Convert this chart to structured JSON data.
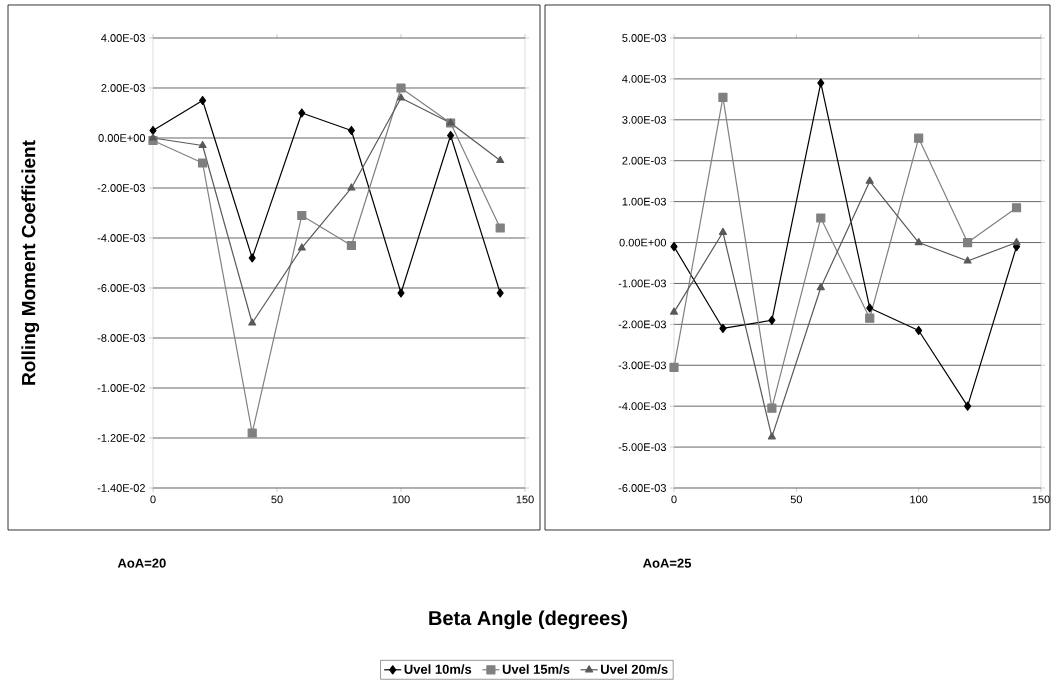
{
  "chart_data": [
    {
      "type": "line",
      "ylabel": "Rolling Moment Coefficient",
      "xlabel": "Beta Angle (degrees)",
      "annotations": [
        "AoA=20"
      ],
      "x": [
        0,
        20,
        40,
        60,
        80,
        100,
        120,
        140
      ],
      "series": [
        {
          "name": "Uvel 10m/s",
          "color": "#000000",
          "marker": "diamond",
          "values": [
            0.0003,
            0.0015,
            -0.0048,
            0.001,
            0.0003,
            -0.0062,
            0.0001,
            -0.0062
          ]
        },
        {
          "name": "Uvel 15m/s",
          "color": "#808080",
          "marker": "square",
          "values": [
            -0.0001,
            -0.001,
            -0.0118,
            -0.0031,
            -0.0043,
            0.002,
            0.0006,
            -0.0036
          ]
        },
        {
          "name": "Uvel 20m/s",
          "color": "#595959",
          "marker": "triangle",
          "values": [
            0.0,
            -0.0003,
            -0.0074,
            -0.0044,
            -0.002,
            0.0016,
            0.0006,
            -0.0009
          ]
        }
      ],
      "xlim": [
        0,
        150
      ],
      "xticks": [
        0,
        50,
        100,
        150
      ],
      "ylim": [
        -0.014,
        0.004
      ],
      "yticks": [
        {
          "value": -0.014,
          "label": "-1.40E-02"
        },
        {
          "value": -0.012,
          "label": "-1.20E-02"
        },
        {
          "value": -0.01,
          "label": "-1.00E-02"
        },
        {
          "value": -0.008,
          "label": "-8.00E-03"
        },
        {
          "value": -0.006,
          "label": "-6.00E-03"
        },
        {
          "value": -0.004,
          "label": "-4.00E-03"
        },
        {
          "value": -0.002,
          "label": "-2.00E-03"
        },
        {
          "value": 0,
          "label": "0.00E+00"
        },
        {
          "value": 0.002,
          "label": "2.00E-03"
        },
        {
          "value": 0.004,
          "label": "4.00E-03"
        }
      ],
      "grid": "y",
      "legend": "bottom",
      "line_style": "solid"
    },
    {
      "type": "line",
      "annotations": [
        "AoA=25"
      ],
      "x": [
        0,
        20,
        40,
        60,
        80,
        100,
        120,
        140
      ],
      "series": [
        {
          "color": "#000000",
          "marker": "diamond",
          "values": [
            -0.0001,
            -0.0021,
            -0.0019,
            0.0039,
            -0.0016,
            -0.00215,
            -0.004,
            -0.0001
          ]
        },
        {
          "color": "#808080",
          "marker": "square",
          "values": [
            -0.00305,
            0.00355,
            -0.00405,
            0.0006,
            -0.00185,
            0.00255,
            0.0,
            0.00085
          ]
        },
        {
          "color": "#595959",
          "marker": "triangle",
          "values": [
            -0.0017,
            0.00025,
            -0.00475,
            -0.0011,
            0.0015,
            0.0,
            -0.00045,
            0.0
          ]
        }
      ],
      "xlim": [
        0,
        150
      ],
      "xticks": [
        0,
        50,
        100,
        150
      ],
      "ylim": [
        -0.006,
        0.005
      ],
      "yticks": [
        {
          "value": -0.006,
          "label": "-6.00E-03"
        },
        {
          "value": -0.005,
          "label": "-5.00E-03"
        },
        {
          "value": -0.004,
          "label": "-4.00E-03"
        },
        {
          "value": -0.003,
          "label": "-3.00E-03"
        },
        {
          "value": -0.002,
          "label": "-2.00E-03"
        },
        {
          "value": -0.001,
          "label": "-1.00E-03"
        },
        {
          "value": 0,
          "label": "0.00E+00"
        },
        {
          "value": 0.001,
          "label": "1.00E-03"
        },
        {
          "value": 0.002,
          "label": "2.00E-03"
        },
        {
          "value": 0.003,
          "label": "3.00E-03"
        },
        {
          "value": 0.004,
          "label": "4.00E-03"
        },
        {
          "value": 0.005,
          "label": "5.00E-03"
        }
      ],
      "grid": "y",
      "legend": false,
      "line_style": "solid"
    }
  ]
}
